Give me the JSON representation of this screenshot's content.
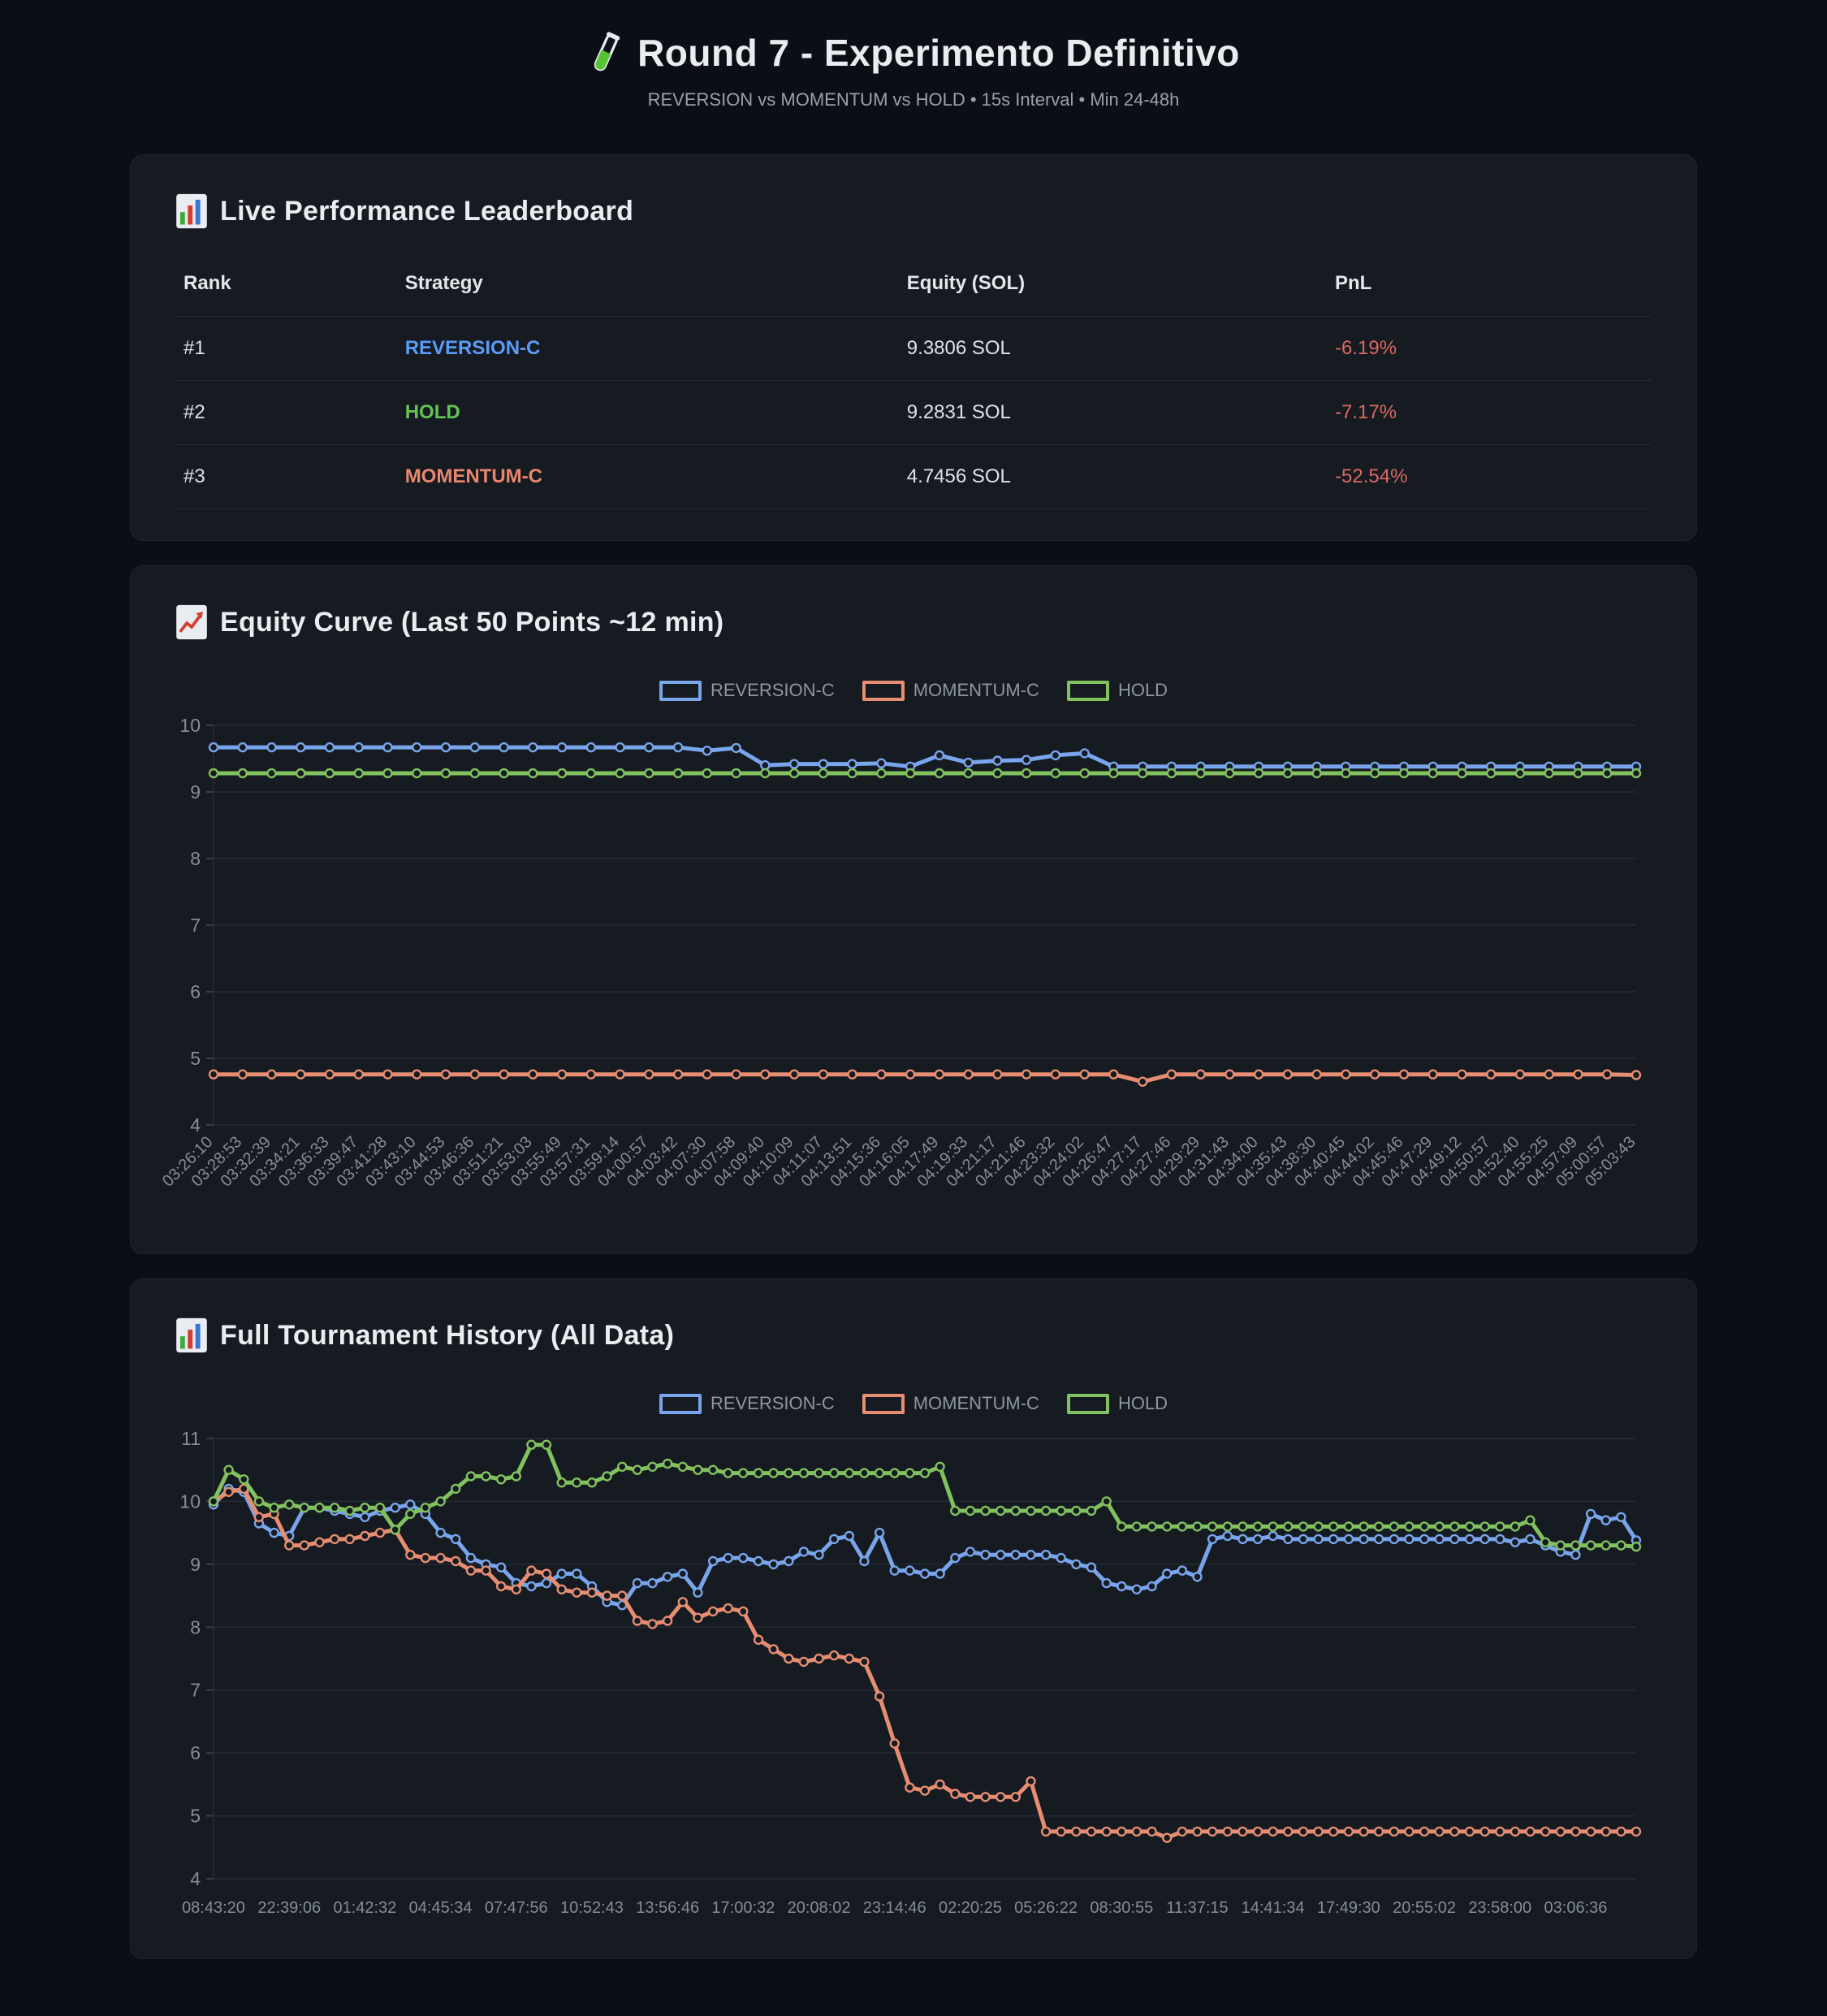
{
  "page": {
    "title": "Round 7 - Experimento Definitivo",
    "title_icon": "test-tube-icon",
    "subtitle": "REVERSION vs MOMENTUM vs HOLD • 15s Interval • Min 24-48h"
  },
  "colors": {
    "background": "#0b0e14",
    "card": "#161b22",
    "grid": "#262b33",
    "axis_text": "#868d95",
    "loss_red": "#dc6862",
    "reversion_blue": "#5b9bf8",
    "hold_green": "#63c353",
    "momentum_salmon": "#e8876c"
  },
  "leaderboard": {
    "icon": "bar-chart-icon",
    "title": "Live Performance Leaderboard",
    "columns": [
      "Rank",
      "Strategy",
      "Equity (SOL)",
      "PnL"
    ],
    "rows": [
      {
        "rank": "#1",
        "strategy": "REVERSION-C",
        "strategy_color": "#5b9bf8",
        "equity": "9.3806 SOL",
        "pnl": "-6.19%"
      },
      {
        "rank": "#2",
        "strategy": "HOLD",
        "strategy_color": "#63c353",
        "equity": "9.2831 SOL",
        "pnl": "-7.17%"
      },
      {
        "rank": "#3",
        "strategy": "MOMENTUM-C",
        "strategy_color": "#e8876c",
        "equity": "4.7456 SOL",
        "pnl": "-52.54%"
      }
    ]
  },
  "chart_data": [
    {
      "type": "line",
      "title": "Equity Curve (Last 50 Points ~12 min)",
      "icon": "chart-increasing-icon",
      "xlabel": "",
      "ylabel": "",
      "ylim": [
        4,
        10
      ],
      "y_ticks": [
        10,
        9,
        8,
        7,
        6,
        5,
        4
      ],
      "grid": true,
      "legend_position": "top",
      "x_label_rotation": -45,
      "label_every": 1,
      "categories": [
        "03:26:10",
        "03:28:53",
        "03:32:39",
        "03:34:21",
        "03:36:33",
        "03:39:47",
        "03:41:28",
        "03:43:10",
        "03:44:53",
        "03:46:36",
        "03:51:21",
        "03:53:03",
        "03:55:49",
        "03:57:31",
        "03:59:14",
        "04:00:57",
        "04:03:42",
        "04:07:30",
        "04:07:58",
        "04:09:40",
        "04:10:09",
        "04:11:07",
        "04:13:51",
        "04:15:36",
        "04:16:05",
        "04:17:49",
        "04:19:33",
        "04:21:17",
        "04:21:46",
        "04:23:32",
        "04:24:02",
        "04:26:47",
        "04:27:17",
        "04:27:46",
        "04:29:29",
        "04:31:43",
        "04:34:00",
        "04:35:43",
        "04:38:30",
        "04:40:45",
        "04:44:02",
        "04:45:46",
        "04:47:29",
        "04:49:12",
        "04:50:57",
        "04:52:40",
        "04:55:25",
        "04:57:09",
        "05:00:57",
        "05:03:43"
      ],
      "series": [
        {
          "name": "REVERSION-C",
          "color": "#79a5ec",
          "values": [
            9.67,
            9.67,
            9.67,
            9.67,
            9.67,
            9.67,
            9.67,
            9.67,
            9.67,
            9.67,
            9.67,
            9.67,
            9.67,
            9.67,
            9.67,
            9.67,
            9.67,
            9.62,
            9.66,
            9.4,
            9.42,
            9.42,
            9.42,
            9.43,
            9.38,
            9.55,
            9.44,
            9.47,
            9.48,
            9.55,
            9.58,
            9.38,
            9.38,
            9.38,
            9.38,
            9.38,
            9.38,
            9.38,
            9.38,
            9.38,
            9.38,
            9.38,
            9.38,
            9.38,
            9.38,
            9.38,
            9.38,
            9.38,
            9.38,
            9.38
          ]
        },
        {
          "name": "MOMENTUM-C",
          "color": "#e78e72",
          "values": [
            4.76,
            4.76,
            4.76,
            4.76,
            4.76,
            4.76,
            4.76,
            4.76,
            4.76,
            4.76,
            4.76,
            4.76,
            4.76,
            4.76,
            4.76,
            4.76,
            4.76,
            4.76,
            4.76,
            4.76,
            4.76,
            4.76,
            4.76,
            4.76,
            4.76,
            4.76,
            4.76,
            4.76,
            4.76,
            4.76,
            4.76,
            4.76,
            4.65,
            4.76,
            4.76,
            4.76,
            4.76,
            4.76,
            4.76,
            4.76,
            4.76,
            4.76,
            4.76,
            4.76,
            4.76,
            4.76,
            4.76,
            4.76,
            4.76,
            4.75
          ]
        },
        {
          "name": "HOLD",
          "color": "#82c25e",
          "values": [
            9.28,
            9.28,
            9.28,
            9.28,
            9.28,
            9.28,
            9.28,
            9.28,
            9.28,
            9.28,
            9.28,
            9.28,
            9.28,
            9.28,
            9.28,
            9.28,
            9.28,
            9.28,
            9.28,
            9.28,
            9.28,
            9.28,
            9.28,
            9.28,
            9.28,
            9.28,
            9.28,
            9.28,
            9.28,
            9.28,
            9.28,
            9.28,
            9.28,
            9.28,
            9.28,
            9.28,
            9.28,
            9.28,
            9.28,
            9.28,
            9.28,
            9.28,
            9.28,
            9.28,
            9.28,
            9.28,
            9.28,
            9.28,
            9.28,
            9.28
          ]
        }
      ]
    },
    {
      "type": "line",
      "title": "Full Tournament History (All Data)",
      "icon": "bar-chart-icon",
      "xlabel": "",
      "ylabel": "",
      "ylim": [
        4,
        11
      ],
      "y_ticks": [
        11,
        10,
        9,
        8,
        7,
        6,
        5,
        4
      ],
      "grid": true,
      "legend_position": "top",
      "x_label_rotation": 0,
      "label_every": 5,
      "categories": [
        "08:43:20",
        "22:39:06",
        "01:42:32",
        "04:45:34",
        "07:47:56",
        "10:52:43",
        "13:56:46",
        "17:00:32",
        "20:08:02",
        "23:14:46",
        "02:20:25",
        "05:26:22",
        "08:30:55",
        "11:37:15",
        "14:41:34",
        "17:49:30",
        "20:55:02",
        "23:58:00",
        "03:06:36"
      ],
      "series": [
        {
          "name": "REVERSION-C",
          "color": "#79a5ec",
          "values": [
            9.95,
            10.2,
            10.15,
            9.65,
            9.5,
            9.45,
            9.9,
            9.9,
            9.85,
            9.8,
            9.75,
            9.85,
            9.9,
            9.95,
            9.8,
            9.5,
            9.4,
            9.1,
            9.0,
            8.95,
            8.7,
            8.65,
            8.7,
            8.85,
            8.85,
            8.65,
            8.4,
            8.35,
            8.7,
            8.7,
            8.8,
            8.85,
            8.55,
            9.05,
            9.1,
            9.1,
            9.05,
            9.0,
            9.05,
            9.2,
            9.15,
            9.4,
            9.45,
            9.05,
            9.5,
            8.9,
            8.9,
            8.85,
            8.85,
            9.1,
            9.2,
            9.15,
            9.15,
            9.15,
            9.15,
            9.15,
            9.1,
            9.0,
            8.95,
            8.7,
            8.65,
            8.6,
            8.65,
            8.85,
            8.9,
            8.8,
            9.4,
            9.45,
            9.4,
            9.4,
            9.45,
            9.4,
            9.4,
            9.4,
            9.4,
            9.4,
            9.4,
            9.4,
            9.4,
            9.4,
            9.4,
            9.4,
            9.4,
            9.4,
            9.4,
            9.4,
            9.35,
            9.4,
            9.3,
            9.2,
            9.15,
            9.8,
            9.7,
            9.75,
            9.38
          ]
        },
        {
          "name": "MOMENTUM-C",
          "color": "#e78e72",
          "values": [
            10.0,
            10.15,
            10.2,
            9.75,
            9.8,
            9.3,
            9.3,
            9.35,
            9.4,
            9.4,
            9.45,
            9.5,
            9.55,
            9.15,
            9.1,
            9.1,
            9.05,
            8.9,
            8.9,
            8.65,
            8.6,
            8.9,
            8.85,
            8.6,
            8.55,
            8.55,
            8.5,
            8.5,
            8.1,
            8.05,
            8.1,
            8.4,
            8.15,
            8.25,
            8.3,
            8.25,
            7.8,
            7.65,
            7.5,
            7.45,
            7.5,
            7.55,
            7.5,
            7.45,
            6.9,
            6.15,
            5.45,
            5.4,
            5.5,
            5.35,
            5.3,
            5.3,
            5.3,
            5.3,
            5.55,
            4.75,
            4.75,
            4.75,
            4.75,
            4.75,
            4.75,
            4.75,
            4.75,
            4.65,
            4.75,
            4.75,
            4.75,
            4.75,
            4.75,
            4.75,
            4.75,
            4.75,
            4.75,
            4.75,
            4.75,
            4.75,
            4.75,
            4.75,
            4.75,
            4.75,
            4.75,
            4.75,
            4.75,
            4.75,
            4.75,
            4.75,
            4.75,
            4.75,
            4.75,
            4.75,
            4.75,
            4.75,
            4.75,
            4.75,
            4.75
          ]
        },
        {
          "name": "HOLD",
          "color": "#82c25e",
          "values": [
            10.0,
            10.5,
            10.35,
            10.0,
            9.9,
            9.95,
            9.9,
            9.9,
            9.9,
            9.85,
            9.9,
            9.9,
            9.55,
            9.8,
            9.9,
            10.0,
            10.2,
            10.4,
            10.4,
            10.35,
            10.4,
            10.9,
            10.9,
            10.3,
            10.3,
            10.3,
            10.4,
            10.55,
            10.5,
            10.55,
            10.6,
            10.55,
            10.5,
            10.5,
            10.45,
            10.45,
            10.45,
            10.45,
            10.45,
            10.45,
            10.45,
            10.45,
            10.45,
            10.45,
            10.45,
            10.45,
            10.45,
            10.45,
            10.55,
            9.85,
            9.85,
            9.85,
            9.85,
            9.85,
            9.85,
            9.85,
            9.85,
            9.85,
            9.85,
            10.0,
            9.6,
            9.6,
            9.6,
            9.6,
            9.6,
            9.6,
            9.6,
            9.6,
            9.6,
            9.6,
            9.6,
            9.6,
            9.6,
            9.6,
            9.6,
            9.6,
            9.6,
            9.6,
            9.6,
            9.6,
            9.6,
            9.6,
            9.6,
            9.6,
            9.6,
            9.6,
            9.6,
            9.7,
            9.35,
            9.3,
            9.3,
            9.3,
            9.3,
            9.3,
            9.28
          ]
        }
      ]
    }
  ]
}
